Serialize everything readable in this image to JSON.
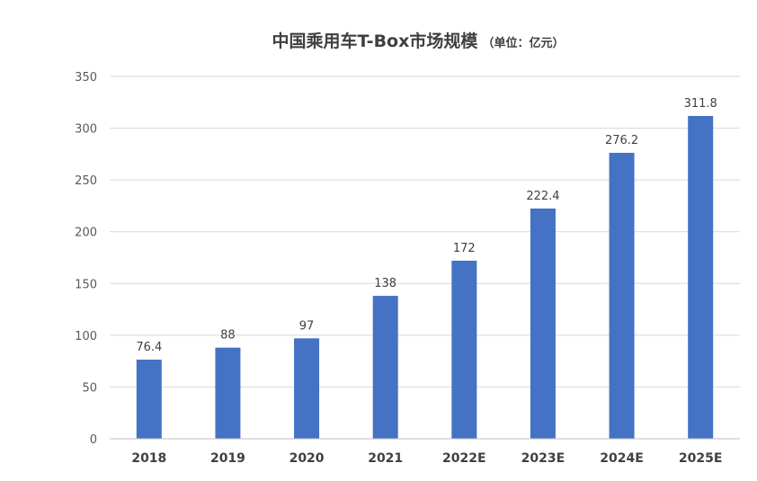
{
  "chart_data": {
    "type": "bar",
    "title": "中国乘用车T-Box市场规模",
    "subtitle": "（单位：亿元）",
    "categories": [
      "2018",
      "2019",
      "2020",
      "2021",
      "2022E",
      "2023E",
      "2024E",
      "2025E"
    ],
    "values": [
      76.4,
      88,
      97,
      138,
      172,
      222.4,
      276.2,
      311.8
    ],
    "data_labels": [
      "76.4",
      "88",
      "97",
      "138",
      "172",
      "222.4",
      "276.2",
      "311.8"
    ],
    "y_ticks": [
      "0",
      "50",
      "100",
      "150",
      "200",
      "250",
      "300",
      "350"
    ],
    "ylim": [
      0,
      350
    ],
    "grid": true,
    "legend": "none",
    "bar_color": "#4472c4"
  }
}
